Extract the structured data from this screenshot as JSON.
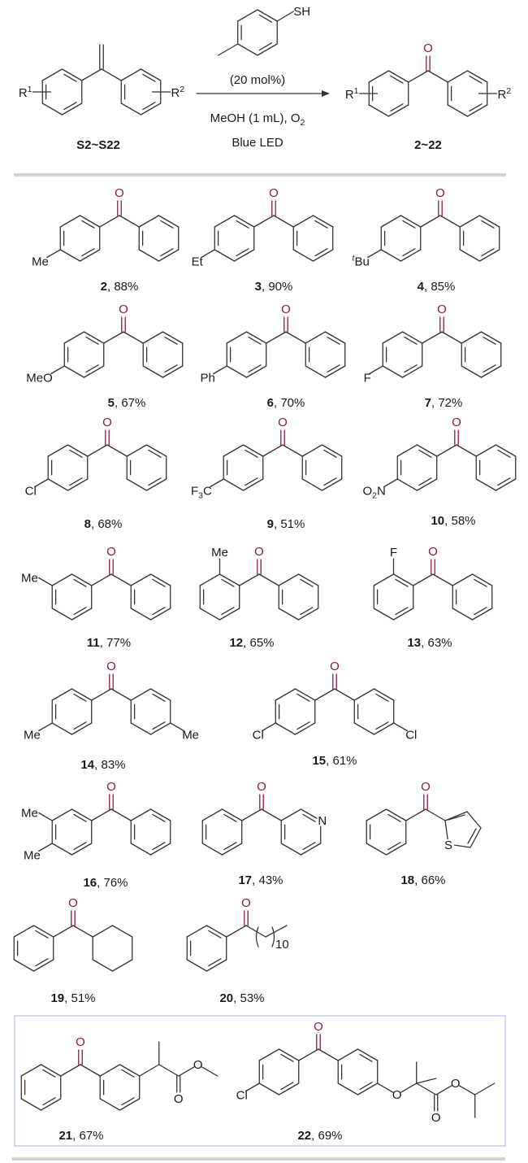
{
  "scheme": {
    "substituent_r": "R",
    "r1_index": "1",
    "r2_index": "2",
    "reagent_group": "SH",
    "catalyst_loading": "(20 mol%)",
    "conditions_line1": "MeOH (1 mL), O",
    "conditions_line1_sub": "2",
    "conditions_line2": "Blue LED",
    "substrate_label": "S2~S22",
    "product_label": "2~22",
    "carbonyl_oxygen": "O"
  },
  "separator": ", ",
  "compounds": [
    {
      "id": "2",
      "yield": "88%",
      "substituents": [
        {
          "segments": [
            {
              "t": "Me"
            }
          ]
        }
      ]
    },
    {
      "id": "3",
      "yield": "90%",
      "substituents": [
        {
          "segments": [
            {
              "t": "Et"
            }
          ]
        }
      ]
    },
    {
      "id": "4",
      "yield": "85%",
      "substituents": [
        {
          "segments": [
            {
              "t": "t",
              "sup": true,
              "italic": true
            },
            {
              "t": "Bu"
            }
          ]
        }
      ]
    },
    {
      "id": "5",
      "yield": "67%",
      "substituents": [
        {
          "segments": [
            {
              "t": "MeO"
            }
          ]
        }
      ]
    },
    {
      "id": "6",
      "yield": "70%",
      "substituents": [
        {
          "segments": [
            {
              "t": "Ph"
            }
          ]
        }
      ]
    },
    {
      "id": "7",
      "yield": "72%",
      "substituents": [
        {
          "segments": [
            {
              "t": "F"
            }
          ]
        }
      ]
    },
    {
      "id": "8",
      "yield": "68%",
      "substituents": [
        {
          "segments": [
            {
              "t": "Cl"
            }
          ]
        }
      ]
    },
    {
      "id": "9",
      "yield": "51%",
      "substituents": [
        {
          "segments": [
            {
              "t": "F"
            },
            {
              "t": "3",
              "sub": true
            },
            {
              "t": "C"
            }
          ]
        }
      ]
    },
    {
      "id": "10",
      "yield": "58%",
      "substituents": [
        {
          "segments": [
            {
              "t": "O"
            },
            {
              "t": "2",
              "sub": true
            },
            {
              "t": "N"
            }
          ]
        }
      ]
    },
    {
      "id": "11",
      "yield": "77%",
      "substituents": [
        {
          "segments": [
            {
              "t": "Me"
            }
          ]
        }
      ]
    },
    {
      "id": "12",
      "yield": "65%",
      "substituents": [
        {
          "segments": [
            {
              "t": "Me"
            }
          ]
        }
      ]
    },
    {
      "id": "13",
      "yield": "63%",
      "substituents": [
        {
          "segments": [
            {
              "t": "F"
            }
          ]
        }
      ]
    },
    {
      "id": "14",
      "yield": "83%",
      "substituents": [
        {
          "segments": [
            {
              "t": "Me"
            }
          ]
        },
        {
          "segments": [
            {
              "t": "Me"
            }
          ]
        }
      ]
    },
    {
      "id": "15",
      "yield": "61%",
      "substituents": [
        {
          "segments": [
            {
              "t": "Cl"
            }
          ]
        },
        {
          "segments": [
            {
              "t": "Cl"
            }
          ]
        }
      ]
    },
    {
      "id": "16",
      "yield": "76%",
      "substituents": [
        {
          "segments": [
            {
              "t": "Me"
            }
          ]
        },
        {
          "segments": [
            {
              "t": "Me"
            }
          ]
        }
      ]
    },
    {
      "id": "17",
      "yield": "43%",
      "substituents": [
        {
          "segments": [
            {
              "t": "N"
            }
          ]
        }
      ]
    },
    {
      "id": "18",
      "yield": "66%",
      "substituents": [
        {
          "segments": [
            {
              "t": "S"
            }
          ]
        }
      ]
    },
    {
      "id": "19",
      "yield": "51%",
      "substituents": []
    },
    {
      "id": "20",
      "yield": "53%",
      "substituents": [
        {
          "segments": [
            {
              "t": "10"
            }
          ]
        }
      ]
    },
    {
      "id": "21",
      "yield": "67%",
      "substituents": [
        {
          "segments": [
            {
              "t": "O"
            }
          ]
        },
        {
          "segments": [
            {
              "t": "O"
            }
          ]
        }
      ]
    },
    {
      "id": "22",
      "yield": "69%",
      "substituents": [
        {
          "segments": [
            {
              "t": "Cl"
            }
          ]
        },
        {
          "segments": [
            {
              "t": "O"
            }
          ]
        },
        {
          "segments": [
            {
              "t": "O"
            }
          ]
        },
        {
          "segments": [
            {
              "t": "O"
            }
          ]
        }
      ]
    }
  ],
  "colors": {
    "carbonyl_oxygen": "#8b1a4a",
    "bond": "#3a3330",
    "divider": "#d3d3d3",
    "highlight_frame": "#b9c3dd"
  }
}
